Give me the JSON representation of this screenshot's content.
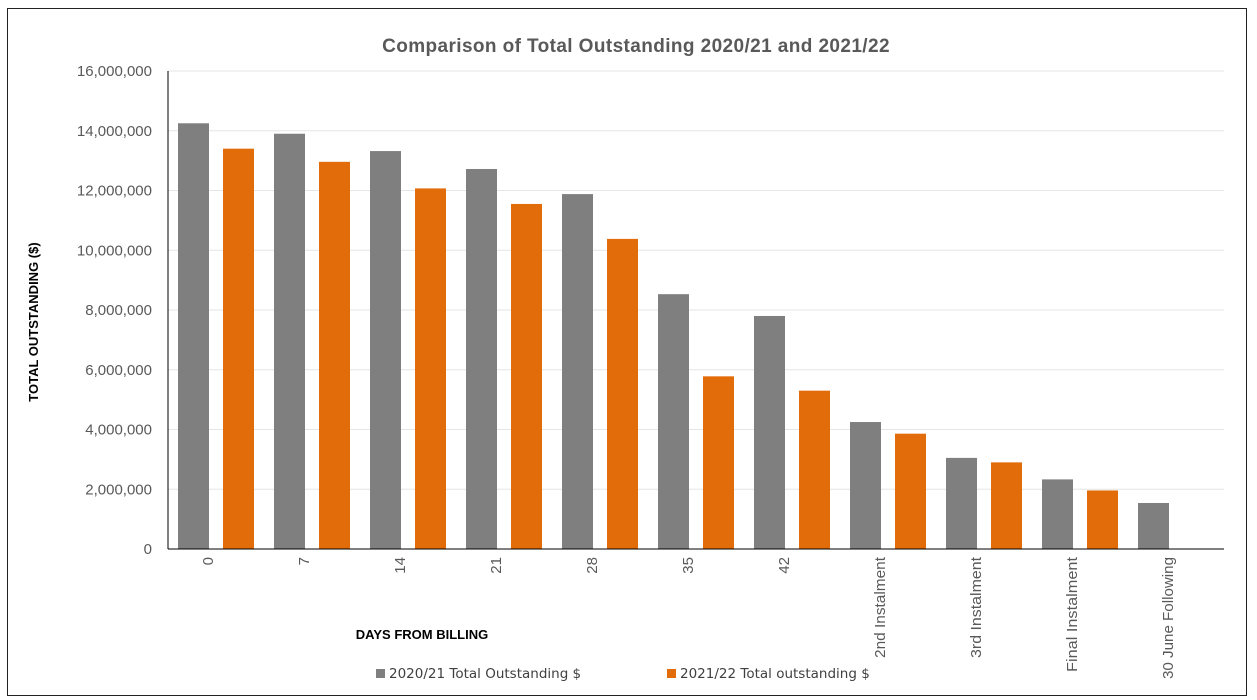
{
  "chart_data": {
    "type": "bar",
    "title": "Comparison of Total Outstanding 2020/21 and 2021/22",
    "xlabel": "DAYS FROM BILLING",
    "ylabel": "TOTAL OUTSTANDING ($)",
    "ylim": [
      0,
      16000000
    ],
    "yticks": [
      0,
      2000000,
      4000000,
      6000000,
      8000000,
      10000000,
      12000000,
      14000000,
      16000000
    ],
    "ytick_labels": [
      "0",
      "2,000,000",
      "4,000,000",
      "6,000,000",
      "8,000,000",
      "10,000,000",
      "12,000,000",
      "14,000,000",
      "16,000,000"
    ],
    "grid": "horizontal",
    "legend_position": "bottom",
    "categories": [
      "0",
      "7",
      "14",
      "21",
      "28",
      "35",
      "42",
      "2nd Instalment",
      "3rd Instalment",
      "Final Instalment",
      "30 June Following"
    ],
    "series": [
      {
        "name": "2020/21 Total Outstanding $",
        "color": "#7f7f7f",
        "values": [
          14250000,
          13900000,
          13320000,
          12720000,
          11880000,
          8530000,
          7800000,
          4250000,
          3050000,
          2330000,
          1540000
        ]
      },
      {
        "name": "2021/22 Total outstanding $",
        "color": "#e36c0a",
        "values": [
          13400000,
          12960000,
          12070000,
          11550000,
          10380000,
          5780000,
          5300000,
          3860000,
          2900000,
          1960000,
          0
        ]
      }
    ]
  }
}
